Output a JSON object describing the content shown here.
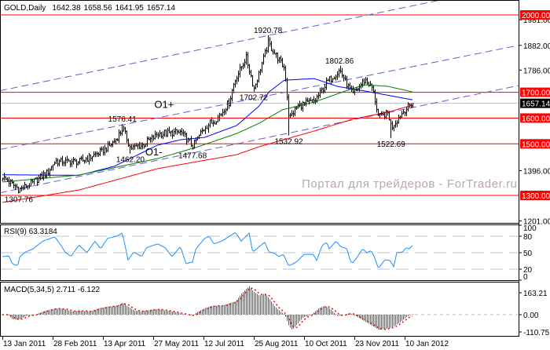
{
  "header": {
    "symbol": "GOLD,Daily",
    "last_bar": [
      "1642.38",
      "1658.56",
      "1641.95",
      "1657.14"
    ]
  },
  "watermark": "Портал для трейдеров - ForTrader.ru",
  "x_axis": {
    "ticks": [
      "13 Jan 2011",
      "28 Feb 2011",
      "13 Apr 2011",
      "27 May 2011",
      "12 Jul 2011",
      "25 Aug 2011",
      "10 Oct 2011",
      "23 Nov 2011",
      "10 Jan 2012"
    ]
  },
  "colors": {
    "bars": "#000000",
    "ma_fast": "#0000ff",
    "ma_mid": "#008000",
    "ma_slow": "#ff0000",
    "channel": "#6a5acd",
    "level_line": "#ff0000",
    "current_price_line": "#c0c0c0",
    "rsi": "#1e90ff",
    "macd_hist": "#1a7f7f",
    "macd_signal": "#ff0000",
    "grid": "#c0c0c0"
  },
  "chart_data": [
    {
      "type": "ohlc",
      "title": "GOLD,Daily",
      "last_bar": {
        "open": 1642.38,
        "high": 1658.56,
        "low": 1641.95,
        "close": 1657.14
      },
      "ylim": [
        1201,
        2000
      ],
      "y_tick_labels": [
        "1981.00",
        "1882.00",
        "1786.00",
        "1396.00",
        "1201.00"
      ],
      "close_path": [
        [
          "13 Jan 2011",
          1372
        ],
        [
          "28 Jan 2011",
          1322
        ],
        [
          "8 Feb 2011",
          1345
        ],
        [
          "23 Feb 2011",
          1390
        ],
        [
          "2 Mar 2011",
          1432
        ],
        [
          "23 Mar 2011",
          1430
        ],
        [
          "12 Apr 2011",
          1470
        ],
        [
          "23 Apr 2011",
          1510
        ],
        [
          "30 Apr 2011",
          1560
        ],
        [
          "7 May 2011",
          1482
        ],
        [
          "17 May 2011",
          1495
        ],
        [
          "31 May 2011",
          1538
        ],
        [
          "21 Jun 2011",
          1545
        ],
        [
          "2 Jul 2011",
          1492
        ],
        [
          "13 Jul 2011",
          1565
        ],
        [
          "24 Jul 2011",
          1600
        ],
        [
          "3 Aug 2011",
          1660
        ],
        [
          "8 Aug 2011",
          1745
        ],
        [
          "18 Aug 2011",
          1835
        ],
        [
          "25 Aug 2011",
          1715
        ],
        [
          "7 Sep 2011",
          1890
        ],
        [
          "22 Sep 2011",
          1790
        ],
        [
          "26 Sep 2011",
          1600
        ],
        [
          "5 Oct 2011",
          1650
        ],
        [
          "19 Oct 2011",
          1665
        ],
        [
          "30 Oct 2011",
          1740
        ],
        [
          "10 Nov 2011",
          1785
        ],
        [
          "21 Nov 2011",
          1690
        ],
        [
          "3 Dec 2011",
          1750
        ],
        [
          "10 Dec 2011",
          1715
        ],
        [
          "16 Dec 2011",
          1600
        ],
        [
          "25 Dec 2011",
          1620
        ],
        [
          "28 Dec 2011",
          1565
        ],
        [
          "10 Jan 2012",
          1632
        ],
        [
          "17 Jan 2012",
          1657.14
        ]
      ],
      "annotations": [
        {
          "text": "1307.76",
          "date": "28 Jan 2011",
          "value": 1307.76,
          "kind": "low"
        },
        {
          "text": "1576.41",
          "date": "30 Apr 2011",
          "value": 1576.41,
          "kind": "high"
        },
        {
          "text": "1462.20",
          "date": "7 May 2011",
          "value": 1462.2,
          "kind": "low"
        },
        {
          "text": "1477.68",
          "date": "2 Jul 2011",
          "value": 1477.68,
          "kind": "low"
        },
        {
          "text": "1702.72",
          "date": "25 Aug 2011",
          "value": 1702.72,
          "kind": "low"
        },
        {
          "text": "1920.78",
          "date": "7 Sep 2011",
          "value": 1920.78,
          "kind": "high"
        },
        {
          "text": "1532.92",
          "date": "26 Sep 2011",
          "value": 1532.92,
          "kind": "low"
        },
        {
          "text": "1802.86",
          "date": "10 Nov 2011",
          "value": 1802.86,
          "kind": "high"
        },
        {
          "text": "1522.69",
          "date": "28 Dec 2011",
          "value": 1522.69,
          "kind": "low"
        }
      ],
      "text_labels": [
        {
          "text": "O1+",
          "date": "28 May 2011",
          "value": 1640
        },
        {
          "text": "O1-",
          "date": "20 May 2011",
          "value": 1455
        }
      ],
      "horizontal_levels": [
        {
          "value": 2000,
          "label": "2000.00"
        },
        {
          "value": 1700,
          "label": "1700.00"
        },
        {
          "value": 1600,
          "label": "1600.00"
        },
        {
          "value": 1500,
          "label": "1500.00"
        },
        {
          "value": 1300,
          "label": "1300.00"
        }
      ],
      "current_price": {
        "value": 1657.14,
        "label": "1657.14"
      },
      "channel_lines": [
        [
          [
            "13 Jan 2011",
            1708
          ],
          [
            "30 Aug 2011",
            1913
          ]
        ],
        [
          [
            "13 Jan 2011",
            1480
          ],
          [
            "30 Aug 2011",
            1680
          ]
        ],
        [
          [
            "13 Jan 2011",
            1312
          ],
          [
            "30 Aug 2011",
            1518
          ]
        ]
      ],
      "moving_averages": [
        {
          "color_key": "ma_fast",
          "points": [
            [
              "13 Jan 2011",
              1380
            ],
            [
              "23 Mar 2011",
              1378
            ],
            [
              "23 Apr 2011",
              1413
            ],
            [
              "31 May 2011",
              1495
            ],
            [
              "21 Jun 2011",
              1516
            ],
            [
              "13 Jul 2011",
              1525
            ],
            [
              "10 Aug 2011",
              1571
            ],
            [
              "30 Aug 2011",
              1647
            ],
            [
              "8 Sep 2011",
              1702
            ],
            [
              "22 Sep 2011",
              1747
            ],
            [
              "19 Oct 2011",
              1753
            ],
            [
              "8 Nov 2011",
              1723
            ],
            [
              "7 Dec 2011",
              1702
            ],
            [
              "17 Jan 2012",
              1671
            ]
          ]
        },
        {
          "color_key": "ma_mid",
          "points": [
            [
              "13 Jan 2011",
              1352
            ],
            [
              "23 Mar 2011",
              1379
            ],
            [
              "31 May 2011",
              1443
            ],
            [
              "5 Jul 2011",
              1486
            ],
            [
              "10 Aug 2011",
              1540
            ],
            [
              "30 Aug 2011",
              1580
            ],
            [
              "20 Sep 2011",
              1632
            ],
            [
              "19 Oct 2011",
              1662
            ],
            [
              "21 Nov 2011",
              1714
            ],
            [
              "3 Dec 2011",
              1729
            ],
            [
              "25 Dec 2011",
              1723
            ],
            [
              "17 Jan 2012",
              1702
            ]
          ]
        },
        {
          "color_key": "ma_slow",
          "points": [
            [
              "13 Jan 2011",
              1273
            ],
            [
              "23 Mar 2011",
              1321
            ],
            [
              "31 May 2011",
              1404
            ],
            [
              "10 Aug 2011",
              1458
            ],
            [
              "30 Aug 2011",
              1489
            ],
            [
              "19 Oct 2011",
              1550
            ],
            [
              "21 Nov 2011",
              1595
            ],
            [
              "28 Dec 2011",
              1626
            ],
            [
              "17 Jan 2012",
              1650
            ]
          ]
        }
      ]
    },
    {
      "type": "line",
      "title": "RSI(9) 63.3184",
      "ylim": [
        0,
        100
      ],
      "levels": [
        80,
        50,
        20
      ],
      "y_tick_labels": [
        "100",
        "80",
        "50",
        "20",
        "0"
      ],
      "points": [
        [
          "13 Jan 2011",
          43
        ],
        [
          "19 Jan 2011",
          44
        ],
        [
          "22 Jan 2011",
          30
        ],
        [
          "27 Jan 2011",
          26
        ],
        [
          "29 Jan 2011",
          43
        ],
        [
          "3 Feb 2011",
          51
        ],
        [
          "10 Feb 2011",
          57
        ],
        [
          "19 Feb 2011",
          71
        ],
        [
          "2 Mar 2011",
          79
        ],
        [
          "7 Mar 2011",
          64
        ],
        [
          "11 Mar 2011",
          51
        ],
        [
          "16 Mar 2011",
          43
        ],
        [
          "23 Mar 2011",
          64
        ],
        [
          "30 Mar 2011",
          50
        ],
        [
          "6 Apr 2011",
          71
        ],
        [
          "11 Apr 2011",
          57
        ],
        [
          "17 Apr 2011",
          76
        ],
        [
          "25 Apr 2011",
          80
        ],
        [
          "30 Apr 2011",
          86
        ],
        [
          "5 May 2011",
          37
        ],
        [
          "10 May 2011",
          51
        ],
        [
          "17 May 2011",
          43
        ],
        [
          "21 May 2011",
          59
        ],
        [
          "31 May 2011",
          66
        ],
        [
          "7 Jun 2011",
          59
        ],
        [
          "13 Jun 2011",
          43
        ],
        [
          "21 Jun 2011",
          61
        ],
        [
          "26 Jun 2011",
          30
        ],
        [
          "2 Jul 2011",
          33
        ],
        [
          "5 Jul 2011",
          57
        ],
        [
          "13 Jul 2011",
          76
        ],
        [
          "17 Jul 2011",
          80
        ],
        [
          "21 Jul 2011",
          66
        ],
        [
          "28 Jul 2011",
          71
        ],
        [
          "9 Aug 2011",
          87
        ],
        [
          "14 Aug 2011",
          71
        ],
        [
          "21 Aug 2011",
          86
        ],
        [
          "24 Aug 2011",
          51
        ],
        [
          "30 Aug 2011",
          61
        ],
        [
          "4 Sep 2011",
          69
        ],
        [
          "8 Sep 2011",
          51
        ],
        [
          "12 Sep 2011",
          50
        ],
        [
          "17 Sep 2011",
          43
        ],
        [
          "21 Sep 2011",
          47
        ],
        [
          "26 Sep 2011",
          26
        ],
        [
          "3 Oct 2011",
          33
        ],
        [
          "10 Oct 2011",
          47
        ],
        [
          "18 Oct 2011",
          47
        ],
        [
          "21 Oct 2011",
          36
        ],
        [
          "26 Oct 2011",
          64
        ],
        [
          "30 Oct 2011",
          69
        ],
        [
          "1 Nov 2011",
          57
        ],
        [
          "7 Nov 2011",
          71
        ],
        [
          "11 Nov 2011",
          61
        ],
        [
          "17 Nov 2011",
          57
        ],
        [
          "18 Nov 2011",
          43
        ],
        [
          "21 Nov 2011",
          30
        ],
        [
          "25 Nov 2011",
          40
        ],
        [
          "1 Dec 2011",
          57
        ],
        [
          "5 Dec 2011",
          50
        ],
        [
          "9 Dec 2011",
          54
        ],
        [
          "12 Dec 2011",
          43
        ],
        [
          "16 Dec 2011",
          21
        ],
        [
          "22 Dec 2011",
          37
        ],
        [
          "27 Dec 2011",
          36
        ],
        [
          "31 Dec 2011",
          23
        ],
        [
          "2 Jan 2012",
          50
        ],
        [
          "8 Jan 2012",
          51
        ],
        [
          "11 Jan 2012",
          59
        ],
        [
          "15 Jan 2012",
          57
        ],
        [
          "17 Jan 2012",
          63.3184
        ]
      ]
    },
    {
      "type": "bar",
      "title": "MACD(5,34,5) 2.711 -6.122",
      "ylim": [
        -110.751,
        163.21
      ],
      "y_tick_labels": [
        "163.21",
        "0.00",
        "-110.751"
      ],
      "signal_last": -6.122,
      "points": [
        [
          "13 Jan 2011",
          0
        ],
        [
          "18 Jan 2011",
          0
        ],
        [
          "22 Jan 2011",
          -23
        ],
        [
          "29 Jan 2011",
          -23
        ],
        [
          "3 Feb 2011",
          -6
        ],
        [
          "12 Feb 2011",
          0
        ],
        [
          "19 Feb 2011",
          16
        ],
        [
          "2 Mar 2011",
          31
        ],
        [
          "11 Mar 2011",
          27
        ],
        [
          "16 Mar 2011",
          16
        ],
        [
          "23 Mar 2011",
          19
        ],
        [
          "2 Apr 2011",
          16
        ],
        [
          "9 Apr 2011",
          31
        ],
        [
          "17 Apr 2011",
          39
        ],
        [
          "25 Apr 2011",
          44
        ],
        [
          "30 Apr 2011",
          59
        ],
        [
          "5 May 2011",
          39
        ],
        [
          "10 May 2011",
          21
        ],
        [
          "17 May 2011",
          16
        ],
        [
          "21 May 2011",
          21
        ],
        [
          "31 May 2011",
          27
        ],
        [
          "13 Jun 2011",
          16
        ],
        [
          "26 Jun 2011",
          0
        ],
        [
          "2 Jul 2011",
          -6
        ],
        [
          "5 Jul 2011",
          10
        ],
        [
          "13 Jul 2011",
          33
        ],
        [
          "20 Jul 2011",
          44
        ],
        [
          "28 Jul 2011",
          44
        ],
        [
          "9 Aug 2011",
          66
        ],
        [
          "14 Aug 2011",
          105
        ],
        [
          "21 Aug 2011",
          141
        ],
        [
          "24 Aug 2011",
          117
        ],
        [
          "30 Aug 2011",
          93
        ],
        [
          "4 Sep 2011",
          105
        ],
        [
          "8 Sep 2011",
          79
        ],
        [
          "13 Sep 2011",
          40
        ],
        [
          "18 Sep 2011",
          16
        ],
        [
          "22 Sep 2011",
          0
        ],
        [
          "26 Sep 2011",
          -57
        ],
        [
          "29 Sep 2011",
          -76
        ],
        [
          "3 Oct 2011",
          -50
        ],
        [
          "9 Oct 2011",
          -13
        ],
        [
          "16 Oct 2011",
          0
        ],
        [
          "23 Oct 2011",
          33
        ],
        [
          "28 Oct 2011",
          44
        ],
        [
          "2 Nov 2011",
          27
        ],
        [
          "8 Nov 2011",
          -6
        ],
        [
          "14 Nov 2011",
          0
        ],
        [
          "19 Nov 2011",
          8
        ],
        [
          "22 Nov 2011",
          0
        ],
        [
          "13 Dec 2011",
          -64
        ],
        [
          "16 Dec 2011",
          -75
        ],
        [
          "22 Dec 2011",
          -70
        ],
        [
          "28 Dec 2011",
          -64
        ],
        [
          "5 Jan 2012",
          -39
        ],
        [
          "13 Jan 2012",
          -6
        ],
        [
          "17 Jan 2012",
          2.711
        ]
      ]
    }
  ]
}
